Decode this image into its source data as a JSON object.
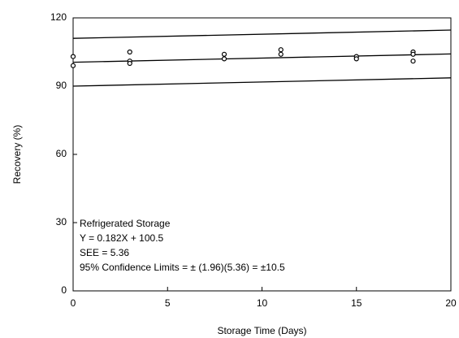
{
  "chart_data": {
    "type": "scatter",
    "xlabel": "Storage Time (Days)",
    "ylabel": "Recovery (%)",
    "xlim": [
      0,
      20
    ],
    "xticks": [
      0,
      5,
      10,
      15,
      20
    ],
    "ylim": [
      0,
      120
    ],
    "yticks": [
      0,
      30,
      60,
      90,
      120
    ],
    "color": "#000000",
    "x": [
      0,
      0,
      3,
      3,
      3,
      8,
      8,
      11,
      11,
      15,
      15,
      18,
      18,
      18
    ],
    "y": [
      103,
      99,
      105,
      101,
      100,
      104,
      102,
      106,
      104,
      103,
      102,
      105,
      104,
      101
    ],
    "lines": [
      {
        "x": [
          0,
          20
        ],
        "y": [
          111,
          114.64
        ]
      },
      {
        "x": [
          0,
          20
        ],
        "y": [
          100.5,
          104.14
        ]
      },
      {
        "x": [
          0,
          20
        ],
        "y": [
          90,
          93.64
        ]
      }
    ],
    "annotations": [
      "Refrigerated Storage",
      "Y = 0.182X + 100.5",
      "SEE = 5.36",
      "95% Confidence Limits = ± (1.96)(5.36) = ±10.5"
    ]
  }
}
